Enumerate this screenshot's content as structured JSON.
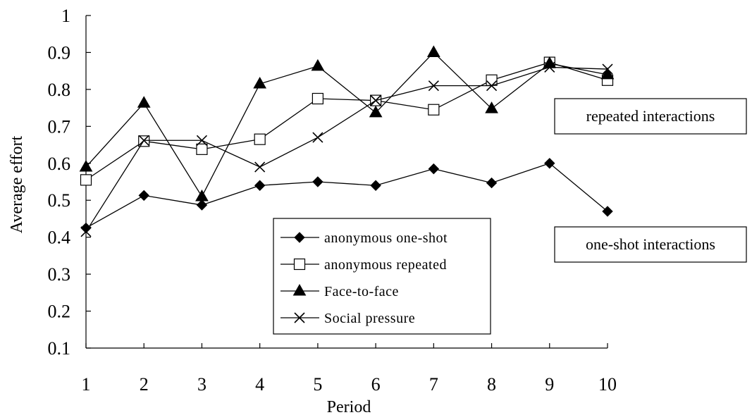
{
  "chart_data": {
    "type": "line",
    "xlabel": "Period",
    "ylabel": "Average effort",
    "x": [
      1,
      2,
      3,
      4,
      5,
      6,
      7,
      8,
      9,
      10
    ],
    "ylim": [
      0.1,
      1
    ],
    "yticks": [
      "0.1",
      "0.2",
      "0.3",
      "0.4",
      "0.5",
      "0.6",
      "0.7",
      "0.8",
      "0.9",
      "1"
    ],
    "grid": false,
    "legend_position": "bottom-center",
    "series": [
      {
        "name": "anonymous one-shot",
        "marker": "diamond",
        "values": [
          0.425,
          0.513,
          0.487,
          0.54,
          0.55,
          0.54,
          0.585,
          0.547,
          0.6,
          0.47
        ]
      },
      {
        "name": "anonymous repeated",
        "marker": "square",
        "values": [
          0.555,
          0.66,
          0.638,
          0.665,
          0.775,
          0.77,
          0.745,
          0.825,
          0.873,
          0.825
        ]
      },
      {
        "name": "Face-to-face",
        "marker": "triangle",
        "values": [
          0.59,
          0.763,
          0.51,
          0.815,
          0.863,
          0.737,
          0.9,
          0.748,
          0.87,
          0.84
        ]
      },
      {
        "name": "Social pressure",
        "marker": "x",
        "values": [
          0.415,
          0.662,
          0.662,
          0.59,
          0.67,
          0.77,
          0.81,
          0.81,
          0.86,
          0.855
        ]
      }
    ],
    "annotations": [
      "repeated interactions",
      "one-shot interactions"
    ]
  }
}
